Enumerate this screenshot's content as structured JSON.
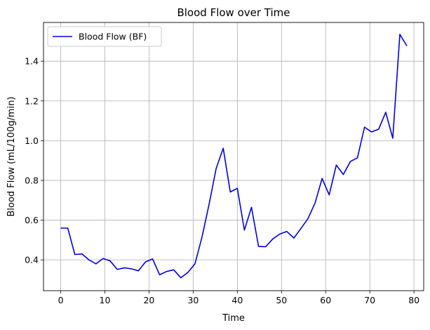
{
  "chart_data": {
    "type": "line",
    "title": "Blood Flow over Time",
    "xlabel": "Time",
    "ylabel": "Blood Flow (mL/100g/min)",
    "xlim": [
      -3.9,
      82.2
    ],
    "ylim": [
      0.245,
      1.595
    ],
    "xticks": [
      0,
      10,
      20,
      30,
      40,
      50,
      60,
      70,
      80
    ],
    "yticks": [
      0.4,
      0.6,
      0.8,
      1.0,
      1.2,
      1.4
    ],
    "ytick_labels": [
      "0.4",
      "0.6",
      "0.8",
      "1.0",
      "1.2",
      "1.4"
    ],
    "grid": true,
    "legend_position": "top-left",
    "series": [
      {
        "name": "Blood Flow (BF)",
        "color": "#0000dd",
        "x": [
          0,
          1.6,
          3.2,
          4.8,
          6.4,
          8.0,
          9.6,
          11.2,
          12.8,
          14.4,
          16.0,
          17.6,
          19.2,
          20.8,
          22.4,
          24.0,
          25.6,
          27.2,
          28.8,
          30.4,
          32.0,
          33.6,
          35.2,
          36.8,
          38.4,
          40.0,
          41.6,
          43.2,
          44.8,
          46.4,
          48.0,
          49.6,
          51.2,
          52.8,
          54.4,
          56.0,
          57.6,
          59.2,
          60.8,
          62.4,
          64.0,
          65.6,
          67.2,
          68.8,
          70.4,
          72.0,
          73.6,
          75.2,
          76.8,
          78.4
        ],
        "y": [
          0.56,
          0.56,
          0.427,
          0.43,
          0.4,
          0.38,
          0.407,
          0.395,
          0.352,
          0.36,
          0.355,
          0.345,
          0.39,
          0.405,
          0.325,
          0.342,
          0.35,
          0.31,
          0.337,
          0.38,
          0.515,
          0.68,
          0.86,
          0.962,
          0.742,
          0.76,
          0.55,
          0.665,
          0.468,
          0.466,
          0.505,
          0.53,
          0.543,
          0.51,
          0.558,
          0.608,
          0.686,
          0.81,
          0.727,
          0.877,
          0.83,
          0.895,
          0.914,
          1.068,
          1.044,
          1.058,
          1.143,
          1.012,
          1.535,
          1.477
        ]
      }
    ]
  }
}
